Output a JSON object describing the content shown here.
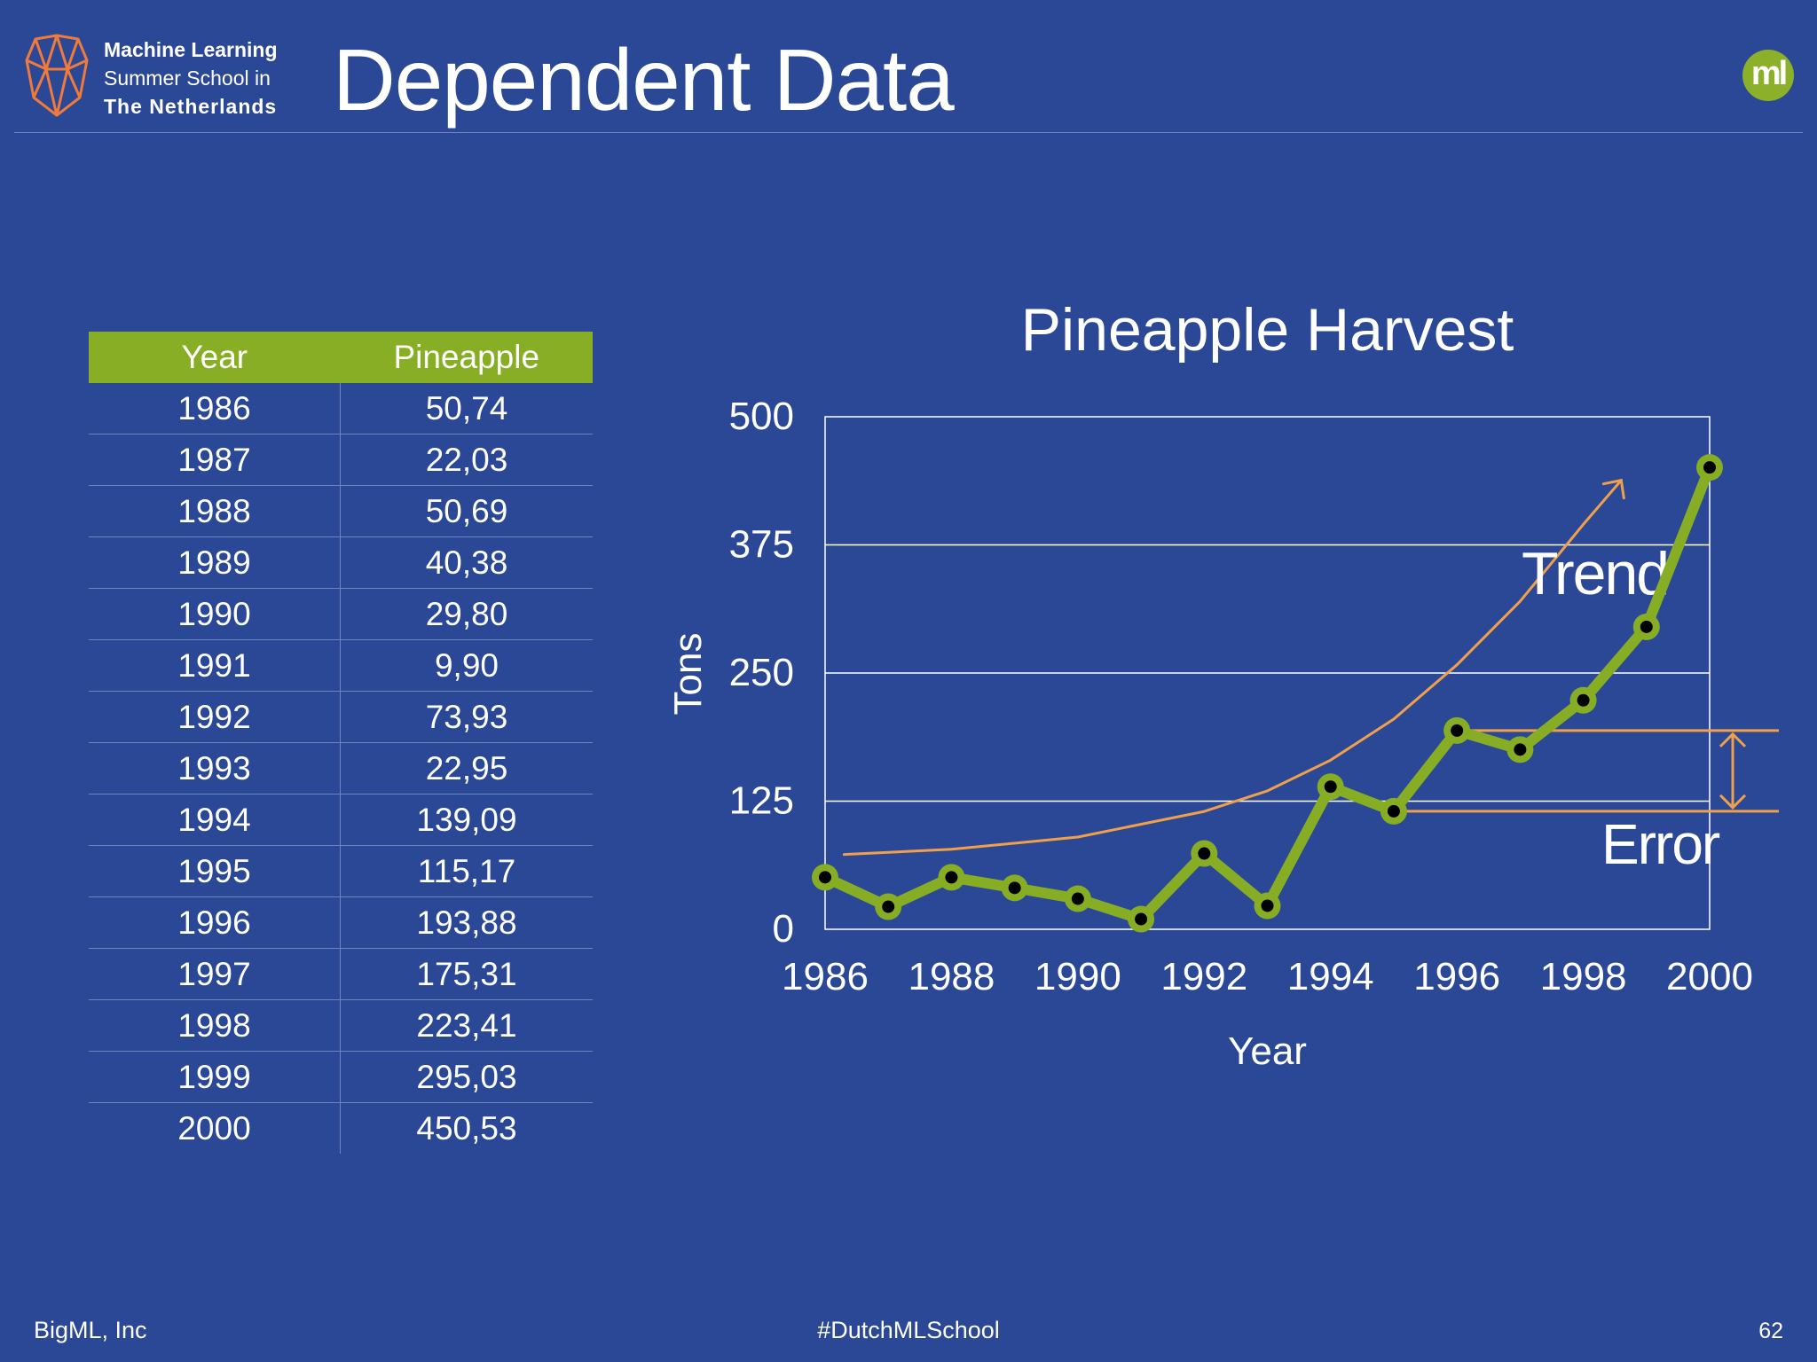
{
  "header": {
    "logo_lines": [
      "Machine Learning",
      "Summer School in",
      "The Netherlands"
    ],
    "title": "Dependent Data",
    "badge": "ml"
  },
  "table": {
    "headers": [
      "Year",
      "Pineapple"
    ],
    "rows": [
      [
        "1986",
        "50,74"
      ],
      [
        "1987",
        "22,03"
      ],
      [
        "1988",
        "50,69"
      ],
      [
        "1989",
        "40,38"
      ],
      [
        "1990",
        "29,80"
      ],
      [
        "1991",
        "9,90"
      ],
      [
        "1992",
        "73,93"
      ],
      [
        "1993",
        "22,95"
      ],
      [
        "1994",
        "139,09"
      ],
      [
        "1995",
        "115,17"
      ],
      [
        "1996",
        "193,88"
      ],
      [
        "1997",
        "175,31"
      ],
      [
        "1998",
        "223,41"
      ],
      [
        "1999",
        "295,03"
      ],
      [
        "2000",
        "450,53"
      ]
    ]
  },
  "chart_data": {
    "type": "line",
    "title": "Pineapple Harvest",
    "xlabel": "Year",
    "ylabel": "Tons",
    "x": [
      1986,
      1987,
      1988,
      1989,
      1990,
      1991,
      1992,
      1993,
      1994,
      1995,
      1996,
      1997,
      1998,
      1999,
      2000
    ],
    "series": [
      {
        "values": [
          50.74,
          22.03,
          50.69,
          40.38,
          29.8,
          9.9,
          73.93,
          22.95,
          139.09,
          115.17,
          193.88,
          175.31,
          223.41,
          295.03,
          450.53
        ]
      }
    ],
    "trend": {
      "x": [
        1986.3,
        1988,
        1990,
        1992,
        1993,
        1994,
        1995,
        1996,
        1997,
        1998,
        1998.6
      ],
      "values": [
        73,
        78,
        90,
        115,
        135,
        165,
        205,
        258,
        320,
        395,
        438
      ]
    },
    "xticks": [
      1986,
      1988,
      1990,
      1992,
      1994,
      1996,
      1998,
      2000
    ],
    "yticks": [
      0,
      125,
      250,
      375,
      500
    ],
    "xlim": [
      1986,
      2000
    ],
    "ylim": [
      0,
      500
    ],
    "grid": true,
    "annotations": [
      "Trend",
      "Error"
    ],
    "colors": {
      "line": "#86ad24",
      "marker_fill": "#000000",
      "trend": "#f0a04b",
      "grid": "#ffffff"
    }
  },
  "footer": {
    "left": "BigML, Inc",
    "center": "#DutchMLSchool",
    "page": "62"
  }
}
